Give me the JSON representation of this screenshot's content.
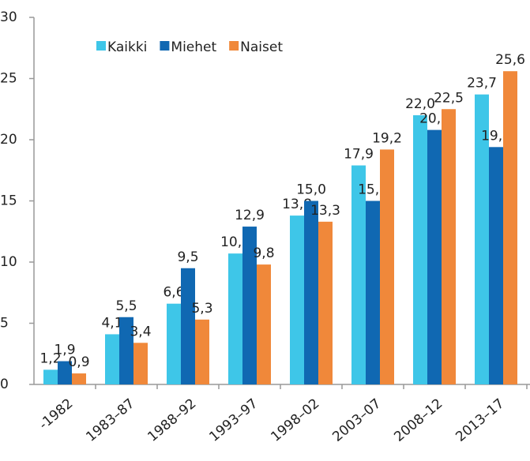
{
  "chart_data": {
    "type": "bar",
    "categories": [
      "-1982",
      "1983–87",
      "1988–92",
      "1993–97",
      "1998–02",
      "2003–07",
      "2008–12",
      "2013–17"
    ],
    "series": [
      {
        "name": "Kaikki",
        "color": "#3ec6e8",
        "values": [
          1.2,
          4.1,
          6.6,
          10.7,
          13.8,
          17.9,
          22.0,
          23.7
        ],
        "value_labels": [
          "1,2",
          "4,1",
          "6,6",
          "10,7",
          "13,8",
          "17,9",
          "22,0",
          "23,7"
        ]
      },
      {
        "name": "Miehet",
        "color": "#1068b2",
        "values": [
          1.9,
          5.5,
          9.5,
          12.9,
          15.0,
          15.0,
          20.8,
          19.4
        ],
        "value_labels": [
          "1,9",
          "5,5",
          "9,5",
          "12,9",
          "15,0",
          "15,0",
          "20,8",
          "19,4"
        ]
      },
      {
        "name": "Naiset",
        "color": "#f0883a",
        "values": [
          0.9,
          3.4,
          5.3,
          9.8,
          13.3,
          19.2,
          22.5,
          25.6
        ],
        "value_labels": [
          "0,9",
          "3,4",
          "5,3",
          "9,8",
          "13,3",
          "19,2",
          "22,5",
          "25,6"
        ]
      }
    ],
    "ylim": [
      0,
      30
    ],
    "yticks": [
      0,
      5,
      10,
      15,
      20,
      25,
      30
    ],
    "grid": false,
    "legend": "top"
  }
}
